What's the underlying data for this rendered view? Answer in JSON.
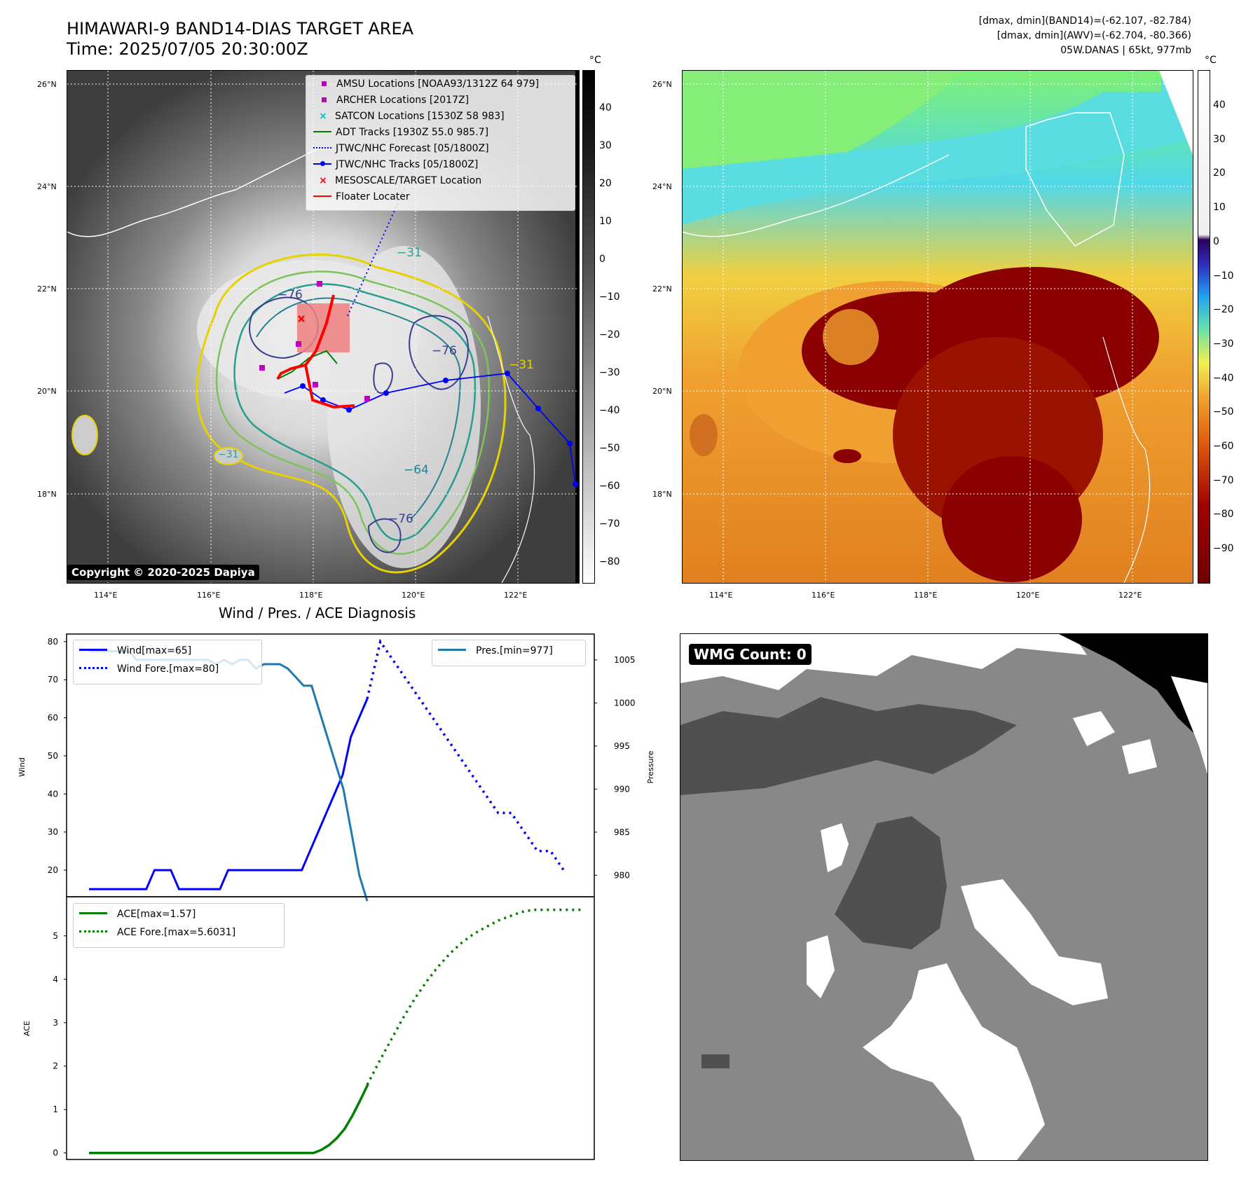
{
  "map_panel": {
    "title_line1": "HIMAWARI-9 BAND14-DIAS TARGET AREA",
    "title_line2": "Time: 2025/07/05 20:30:00Z",
    "colorbar_unit": "°C",
    "colorbar_ticks": [
      "40",
      "30",
      "20",
      "10",
      "0",
      "−10",
      "−20",
      "−30",
      "−40",
      "−50",
      "−60",
      "−70",
      "−80"
    ],
    "lat_labels": [
      "26°N",
      "24°N",
      "22°N",
      "20°N",
      "18°N"
    ],
    "lon_labels": [
      "114°E",
      "116°E",
      "118°E",
      "120°E",
      "122°E"
    ],
    "contour_labels": [
      "−76",
      "−31",
      "−76",
      "−64",
      "−31",
      "−31",
      "−76"
    ],
    "copyright": "Copyright © 2020-2025 Dapiya",
    "legend": [
      {
        "label": "AMSU Locations [NOAA93/1312Z 64 979]",
        "marker": "square",
        "color": "#c000c0"
      },
      {
        "label": "ARCHER Locations [2017Z]",
        "marker": "square",
        "color": "#c000c0"
      },
      {
        "label": "SATCON Locations [1530Z 58 983]",
        "marker": "x",
        "color": "#00bfbf"
      },
      {
        "label": "ADT Tracks [1930Z 55.0 985.7]",
        "marker": "line",
        "color": "#008000"
      },
      {
        "label": "JTWC/NHC Forecast [05/1800Z]",
        "marker": "dotted",
        "color": "#0000ff"
      },
      {
        "label": "JTWC/NHC Tracks [05/1800Z]",
        "marker": "line-dot",
        "color": "#0000ff"
      },
      {
        "label": "MESOSCALE/TARGET Location",
        "marker": "x",
        "color": "#ff0000"
      },
      {
        "label": "Floater Locater",
        "marker": "line",
        "color": "#ff0000"
      }
    ]
  },
  "awv_panel": {
    "info_line1": "[dmax, dmin](BAND14)=(-62.107, -82.784)",
    "info_line2": "[dmax, dmin](AWV)=(-62.704, -80.366)",
    "info_line3": "05W.DANAS | 65kt, 977mb",
    "colorbar_unit": "°C",
    "colorbar_ticks": [
      "40",
      "30",
      "20",
      "10",
      "0",
      "−10",
      "−20",
      "−30",
      "−40",
      "−50",
      "−60",
      "−70",
      "−80",
      "−90"
    ],
    "lat_labels": [
      "26°N",
      "24°N",
      "22°N",
      "20°N",
      "18°N"
    ],
    "lon_labels": [
      "114°E",
      "116°E",
      "118°E",
      "120°E",
      "122°E"
    ]
  },
  "diagnosis_title": "Wind / Pres. / ACE Diagnosis",
  "wmg_panel": {
    "label": "WMG Count: 0"
  },
  "chart_data": [
    {
      "type": "line",
      "title": "Wind / Pres. / ACE Diagnosis",
      "ylabel": "Wind",
      "ylabel_right": "Pressure",
      "ylim": [
        13,
        82
      ],
      "ylim_right": [
        977.5,
        1008
      ],
      "yticks": [
        20,
        30,
        40,
        50,
        60,
        70,
        80
      ],
      "yticks_right": [
        980,
        985,
        990,
        995,
        1000,
        1005
      ],
      "series": [
        {
          "name": "Wind[max=65]",
          "axis": "left",
          "style": "solid",
          "color": "#0000ff",
          "values": [
            15,
            15,
            15,
            15,
            15,
            15,
            15,
            15,
            20,
            20,
            20,
            15,
            15,
            15,
            15,
            15,
            15,
            20,
            20,
            20,
            20,
            20,
            20,
            20,
            20,
            20,
            20,
            25,
            30,
            35,
            40,
            45,
            55,
            60,
            65
          ]
        },
        {
          "name": "Wind Fore.[max=80]",
          "axis": "left",
          "style": "dotted",
          "color": "#0000ff",
          "values": [
            65,
            80,
            75,
            70,
            65,
            60,
            55,
            50,
            45,
            40,
            35,
            35,
            30,
            25,
            25,
            20
          ]
        },
        {
          "name": "Pres.[min=977]",
          "axis": "right",
          "style": "solid",
          "color": "#1f77b4",
          "values": [
            1006,
            1006,
            1006,
            1006,
            1006,
            1006,
            1005,
            1005,
            1005,
            1005,
            1005,
            1005,
            1005,
            1005,
            1005,
            1005,
            1004.5,
            1005,
            1004.5,
            1005,
            1005,
            1004,
            1004.5,
            1004.5,
            1004.5,
            1004,
            1003,
            1002,
            1002,
            999,
            996,
            993,
            990,
            985,
            980,
            977
          ]
        }
      ]
    },
    {
      "type": "line",
      "ylabel": "ACE",
      "ylim": [
        -0.15,
        5.9
      ],
      "yticks": [
        0,
        1,
        2,
        3,
        4,
        5
      ],
      "series": [
        {
          "name": "ACE[max=1.57]",
          "style": "solid",
          "color": "#008000",
          "values": [
            0,
            0,
            0,
            0,
            0,
            0,
            0,
            0,
            0,
            0,
            0,
            0,
            0,
            0,
            0,
            0,
            0,
            0,
            0,
            0,
            0,
            0,
            0,
            0,
            0,
            0,
            0,
            0,
            0,
            0,
            0.07,
            0.18,
            0.34,
            0.55,
            0.85,
            1.2,
            1.57
          ]
        },
        {
          "name": "ACE Fore.[max=5.6031]",
          "style": "dotted",
          "color": "#008000",
          "values": [
            1.57,
            2.1,
            2.6,
            3.1,
            3.55,
            3.95,
            4.3,
            4.6,
            4.85,
            5.05,
            5.2,
            5.35,
            5.45,
            5.55,
            5.6,
            5.6,
            5.6,
            5.6,
            5.6
          ]
        }
      ]
    }
  ]
}
